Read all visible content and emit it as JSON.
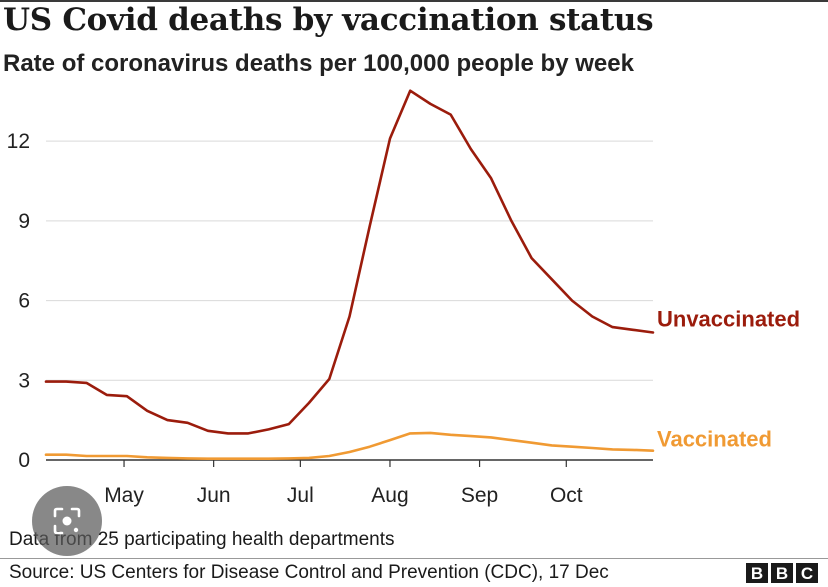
{
  "title": "US Covid deaths by vaccination status",
  "subtitle": "Rate of coronavirus deaths per 100,000 people by week",
  "note": "Data from 25 participating health departments",
  "source": "Source: US Centers for Disease Control and Prevention (CDC), 17 Dec",
  "logo": [
    "B",
    "B",
    "C"
  ],
  "colors": {
    "unvaccinated": "#9b1c0c",
    "vaccinated": "#f09a33",
    "grid": "#d9d9d9",
    "axis": "#333333",
    "text": "#222222"
  },
  "overlay": {
    "icon": "lens-search-icon"
  },
  "chart_data": {
    "type": "line",
    "title": "US Covid deaths by vaccination status",
    "subtitle": "Rate of coronavirus deaths per 100,000 people by week",
    "xlabel": "",
    "ylabel": "",
    "x": [
      "2021-04-04",
      "2021-04-11",
      "2021-04-18",
      "2021-04-25",
      "2021-05-02",
      "2021-05-09",
      "2021-05-16",
      "2021-05-23",
      "2021-05-30",
      "2021-06-06",
      "2021-06-13",
      "2021-06-20",
      "2021-06-27",
      "2021-07-04",
      "2021-07-11",
      "2021-07-18",
      "2021-07-25",
      "2021-08-01",
      "2021-08-08",
      "2021-08-15",
      "2021-08-22",
      "2021-08-29",
      "2021-09-05",
      "2021-09-12",
      "2021-09-19",
      "2021-09-26",
      "2021-10-03",
      "2021-10-10",
      "2021-10-17",
      "2021-10-24",
      "2021-10-31"
    ],
    "xlim": [
      "2021-04-04",
      "2021-10-31"
    ],
    "x_ticks": [
      {
        "label": "May",
        "date": "2021-05-01"
      },
      {
        "label": "Jun",
        "date": "2021-06-01"
      },
      {
        "label": "Jul",
        "date": "2021-07-01"
      },
      {
        "label": "Aug",
        "date": "2021-08-01"
      },
      {
        "label": "Sep",
        "date": "2021-09-01"
      },
      {
        "label": "Oct",
        "date": "2021-10-01"
      }
    ],
    "y_ticks": [
      0,
      3,
      6,
      9,
      12
    ],
    "ylim": [
      0,
      14
    ],
    "grid": true,
    "series": [
      {
        "name": "Unvaccinated",
        "color": "#9b1c0c",
        "values": [
          2.95,
          2.95,
          2.9,
          2.45,
          2.4,
          1.85,
          1.5,
          1.4,
          1.1,
          1.0,
          1.0,
          1.15,
          1.35,
          2.15,
          3.05,
          5.4,
          8.8,
          12.1,
          13.9,
          13.4,
          13.0,
          11.7,
          10.6,
          9.0,
          7.6,
          6.8,
          6.0,
          5.4,
          5.0,
          4.9,
          4.8
        ]
      },
      {
        "name": "Vaccinated",
        "color": "#f09a33",
        "values": [
          0.2,
          0.2,
          0.15,
          0.15,
          0.15,
          0.1,
          0.08,
          0.06,
          0.05,
          0.05,
          0.05,
          0.05,
          0.06,
          0.08,
          0.15,
          0.3,
          0.5,
          0.75,
          1.0,
          1.02,
          0.95,
          0.9,
          0.85,
          0.75,
          0.65,
          0.55,
          0.5,
          0.45,
          0.4,
          0.38,
          0.35
        ]
      }
    ]
  }
}
